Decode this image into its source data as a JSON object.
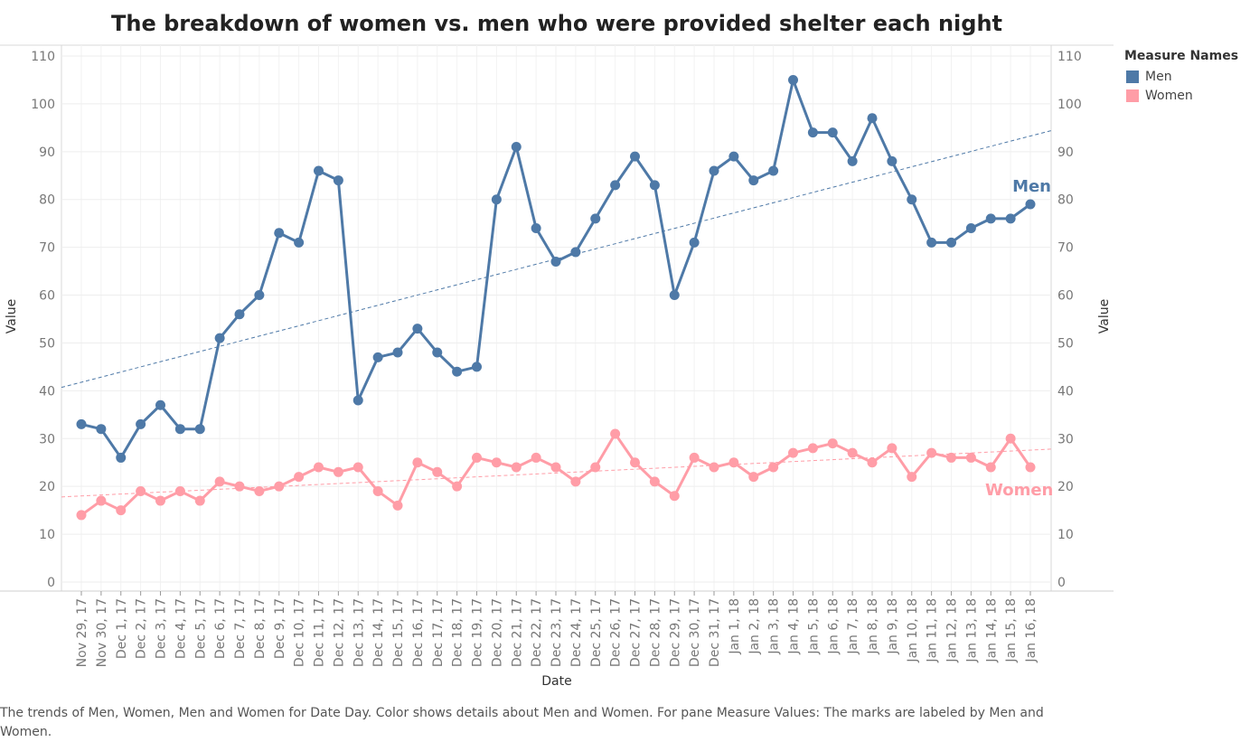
{
  "chart_data": {
    "type": "line",
    "title": "The breakdown of women vs. men who were provided shelter each night",
    "xlabel": "Date",
    "ylabel": "Value",
    "ylabel_right": "Value",
    "ylim": [
      0,
      110
    ],
    "yticks": [
      0,
      10,
      20,
      30,
      40,
      50,
      60,
      70,
      80,
      90,
      100,
      110
    ],
    "grid": true,
    "categories": [
      "Nov 29, 17",
      "Nov 30, 17",
      "Dec 1, 17",
      "Dec 2, 17",
      "Dec 3, 17",
      "Dec 4, 17",
      "Dec 5, 17",
      "Dec 6, 17",
      "Dec 7, 17",
      "Dec 8, 17",
      "Dec 9, 17",
      "Dec 10, 17",
      "Dec 11, 17",
      "Dec 12, 17",
      "Dec 13, 17",
      "Dec 14, 17",
      "Dec 15, 17",
      "Dec 16, 17",
      "Dec 17, 17",
      "Dec 18, 17",
      "Dec 19, 17",
      "Dec 20, 17",
      "Dec 21, 17",
      "Dec 22, 17",
      "Dec 23, 17",
      "Dec 24, 17",
      "Dec 25, 17",
      "Dec 26, 17",
      "Dec 27, 17",
      "Dec 28, 17",
      "Dec 29, 17",
      "Dec 30, 17",
      "Dec 31, 17",
      "Jan 1, 18",
      "Jan 2, 18",
      "Jan 3, 18",
      "Jan 4, 18",
      "Jan 5, 18",
      "Jan 6, 18",
      "Jan 7, 18",
      "Jan 8, 18",
      "Jan 9, 18",
      "Jan 10, 18",
      "Jan 11, 18",
      "Jan 12, 18",
      "Jan 13, 18",
      "Jan 14, 18",
      "Jan 15, 18",
      "Jan 16, 18"
    ],
    "series": [
      {
        "name": "Men",
        "color": "#4e79a7",
        "values": [
          33,
          32,
          26,
          33,
          37,
          32,
          32,
          51,
          56,
          60,
          73,
          71,
          86,
          84,
          38,
          47,
          48,
          53,
          48,
          44,
          45,
          80,
          91,
          74,
          67,
          69,
          76,
          83,
          89,
          83,
          60,
          71,
          86,
          89,
          84,
          86,
          105,
          94,
          94,
          88,
          97,
          88,
          80,
          71,
          71,
          74,
          76,
          76,
          79
        ],
        "trend": [
          40.7,
          94.4
        ]
      },
      {
        "name": "Women",
        "color": "#ff9da7",
        "values": [
          14,
          17,
          15,
          19,
          17,
          19,
          17,
          21,
          20,
          19,
          20,
          22,
          24,
          23,
          24,
          19,
          16,
          25,
          23,
          20,
          26,
          25,
          24,
          26,
          24,
          21,
          24,
          31,
          25,
          21,
          18,
          26,
          24,
          25,
          22,
          24,
          27,
          28,
          29,
          27,
          25,
          28,
          22,
          27,
          26,
          26,
          24,
          30,
          24
        ],
        "trend": [
          17.8,
          27.8
        ]
      }
    ],
    "legend": {
      "title": "Measure Names",
      "position": "right",
      "items": [
        "Men",
        "Women"
      ]
    },
    "end_labels": [
      "Men",
      "Women"
    ],
    "caption": "The trends of Men, Women, Men and Women for Date Day.  Color shows details about Men and Women.  For pane Measure Values:  The marks are labeled by Men and Women."
  }
}
